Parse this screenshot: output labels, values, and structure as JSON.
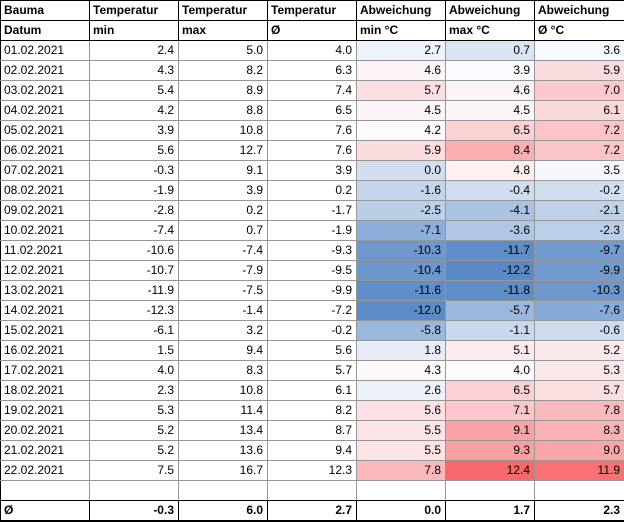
{
  "columns": {
    "row1": [
      "Bauma",
      "Temperatur",
      "Temperatur",
      "Temperatur",
      "Abweichung",
      "Abweichung",
      "Abweichung"
    ],
    "row2": [
      "Datum",
      "min",
      "max",
      "Ø",
      "min °C",
      "max °C",
      "Ø °C"
    ]
  },
  "rows": [
    {
      "date": "01.02.2021",
      "min": 2.4,
      "max": 5.0,
      "avg": 4.0,
      "dev_min": 2.7,
      "dev_max": 0.7,
      "dev_avg": 3.6
    },
    {
      "date": "02.02.2021",
      "min": 4.3,
      "max": 8.2,
      "avg": 6.3,
      "dev_min": 4.6,
      "dev_max": 3.9,
      "dev_avg": 5.9
    },
    {
      "date": "03.02.2021",
      "min": 5.4,
      "max": 8.9,
      "avg": 7.4,
      "dev_min": 5.7,
      "dev_max": 4.6,
      "dev_avg": 7.0
    },
    {
      "date": "04.02.2021",
      "min": 4.2,
      "max": 8.8,
      "avg": 6.5,
      "dev_min": 4.5,
      "dev_max": 4.5,
      "dev_avg": 6.1
    },
    {
      "date": "05.02.2021",
      "min": 3.9,
      "max": 10.8,
      "avg": 7.6,
      "dev_min": 4.2,
      "dev_max": 6.5,
      "dev_avg": 7.2
    },
    {
      "date": "06.02.2021",
      "min": 5.6,
      "max": 12.7,
      "avg": 7.6,
      "dev_min": 5.9,
      "dev_max": 8.4,
      "dev_avg": 7.2
    },
    {
      "date": "07.02.2021",
      "min": -0.3,
      "max": 9.1,
      "avg": 3.9,
      "dev_min": 0.0,
      "dev_max": 4.8,
      "dev_avg": 3.5
    },
    {
      "date": "08.02.2021",
      "min": -1.9,
      "max": 3.9,
      "avg": 0.2,
      "dev_min": -1.6,
      "dev_max": -0.4,
      "dev_avg": -0.2
    },
    {
      "date": "09.02.2021",
      "min": -2.8,
      "max": 0.2,
      "avg": -1.7,
      "dev_min": -2.5,
      "dev_max": -4.1,
      "dev_avg": -2.1
    },
    {
      "date": "10.02.2021",
      "min": -7.4,
      "max": 0.7,
      "avg": -1.9,
      "dev_min": -7.1,
      "dev_max": -3.6,
      "dev_avg": -2.3
    },
    {
      "date": "11.02.2021",
      "min": -10.6,
      "max": -7.4,
      "avg": -9.3,
      "dev_min": -10.3,
      "dev_max": -11.7,
      "dev_avg": -9.7
    },
    {
      "date": "12.02.2021",
      "min": -10.7,
      "max": -7.9,
      "avg": -9.5,
      "dev_min": -10.4,
      "dev_max": -12.2,
      "dev_avg": -9.9
    },
    {
      "date": "13.02.2021",
      "min": -11.9,
      "max": -7.5,
      "avg": -9.9,
      "dev_min": -11.6,
      "dev_max": -11.8,
      "dev_avg": -10.3
    },
    {
      "date": "14.02.2021",
      "min": -12.3,
      "max": -1.4,
      "avg": -7.2,
      "dev_min": -12.0,
      "dev_max": -5.7,
      "dev_avg": -7.6
    },
    {
      "date": "15.02.2021",
      "min": -6.1,
      "max": 3.2,
      "avg": -0.2,
      "dev_min": -5.8,
      "dev_max": -1.1,
      "dev_avg": -0.6
    },
    {
      "date": "16.02.2021",
      "min": 1.5,
      "max": 9.4,
      "avg": 5.6,
      "dev_min": 1.8,
      "dev_max": 5.1,
      "dev_avg": 5.2
    },
    {
      "date": "17.02.2021",
      "min": 4.0,
      "max": 8.3,
      "avg": 5.7,
      "dev_min": 4.3,
      "dev_max": 4.0,
      "dev_avg": 5.3
    },
    {
      "date": "18.02.2021",
      "min": 2.3,
      "max": 10.8,
      "avg": 6.1,
      "dev_min": 2.6,
      "dev_max": 6.5,
      "dev_avg": 5.7
    },
    {
      "date": "19.02.2021",
      "min": 5.3,
      "max": 11.4,
      "avg": 8.2,
      "dev_min": 5.6,
      "dev_max": 7.1,
      "dev_avg": 7.8
    },
    {
      "date": "20.02.2021",
      "min": 5.2,
      "max": 13.4,
      "avg": 8.7,
      "dev_min": 5.5,
      "dev_max": 9.1,
      "dev_avg": 8.3
    },
    {
      "date": "21.02.2021",
      "min": 5.2,
      "max": 13.6,
      "avg": 9.4,
      "dev_min": 5.5,
      "dev_max": 9.3,
      "dev_avg": 9.0
    },
    {
      "date": "22.02.2021",
      "min": 7.5,
      "max": 16.7,
      "avg": 12.3,
      "dev_min": 7.8,
      "dev_max": 12.4,
      "dev_avg": 11.9
    }
  ],
  "summary": {
    "label": "Ø",
    "min": "-0.3",
    "max": "6.0",
    "avg": "2.7",
    "dev_min": "0.0",
    "dev_max": "1.7",
    "dev_avg": "2.3"
  },
  "color_scale": {
    "low": "#5A8AC6",
    "mid": "#FCFCFF",
    "high": "#F8696B",
    "domain_min": -12.2,
    "domain_mid": 4.1,
    "domain_max": 12.4
  },
  "grid": {
    "data_border": "#969696",
    "header_border": "#000000"
  }
}
